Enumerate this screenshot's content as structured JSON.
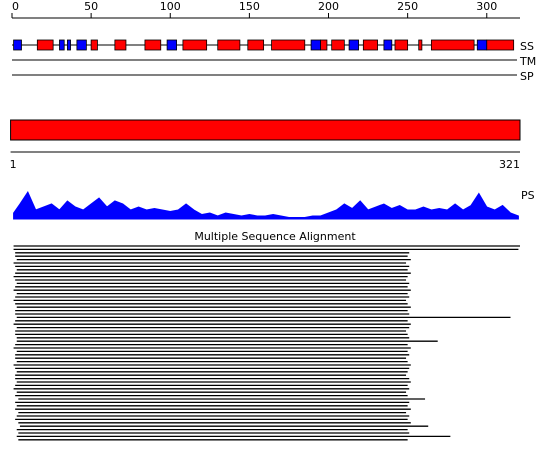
{
  "ruler": {
    "range": [
      0,
      321
    ],
    "ticks": [
      0,
      50,
      100,
      150,
      200,
      250,
      300
    ]
  },
  "tracks": {
    "ss": {
      "label": "SS",
      "helix_color": "#ff0000",
      "strand_color": "#0000ff",
      "segments": [
        {
          "type": "strand",
          "start": 1,
          "end": 6
        },
        {
          "type": "helix",
          "start": 16,
          "end": 26
        },
        {
          "type": "strand",
          "start": 30,
          "end": 33
        },
        {
          "type": "strand",
          "start": 35,
          "end": 37
        },
        {
          "type": "strand",
          "start": 41,
          "end": 47
        },
        {
          "type": "helix",
          "start": 50,
          "end": 54
        },
        {
          "type": "helix",
          "start": 65,
          "end": 72
        },
        {
          "type": "helix",
          "start": 84,
          "end": 94
        },
        {
          "type": "strand",
          "start": 98,
          "end": 104
        },
        {
          "type": "helix",
          "start": 108,
          "end": 123
        },
        {
          "type": "helix",
          "start": 130,
          "end": 144
        },
        {
          "type": "helix",
          "start": 149,
          "end": 159
        },
        {
          "type": "helix",
          "start": 164,
          "end": 185
        },
        {
          "type": "strand",
          "start": 189,
          "end": 195
        },
        {
          "type": "helix",
          "start": 195,
          "end": 199
        },
        {
          "type": "helix",
          "start": 202,
          "end": 210
        },
        {
          "type": "strand",
          "start": 213,
          "end": 219
        },
        {
          "type": "helix",
          "start": 222,
          "end": 231
        },
        {
          "type": "strand",
          "start": 235,
          "end": 240
        },
        {
          "type": "helix",
          "start": 242,
          "end": 250
        },
        {
          "type": "helix",
          "start": 257,
          "end": 259
        },
        {
          "type": "helix",
          "start": 265,
          "end": 292
        },
        {
          "type": "strand",
          "start": 294,
          "end": 300
        },
        {
          "type": "helix",
          "start": 300,
          "end": 317
        }
      ]
    },
    "tm": {
      "label": "TM"
    },
    "sp": {
      "label": "SP"
    }
  },
  "domain": {
    "start": 1,
    "end": 321,
    "color": "#ff0000"
  },
  "profile": {
    "label": "PS",
    "color": "#0000ff",
    "range": [
      0,
      1
    ],
    "residues": [
      1,
      5,
      10,
      15,
      20,
      25,
      30,
      35,
      40,
      45,
      50,
      55,
      60,
      65,
      70,
      75,
      80,
      85,
      90,
      95,
      100,
      105,
      110,
      115,
      120,
      125,
      130,
      135,
      140,
      145,
      150,
      155,
      160,
      165,
      170,
      175,
      180,
      185,
      190,
      195,
      200,
      205,
      210,
      215,
      220,
      225,
      230,
      235,
      240,
      245,
      250,
      255,
      260,
      265,
      270,
      275,
      280,
      285,
      290,
      295,
      300,
      305,
      310,
      315,
      320
    ],
    "values": [
      0.2,
      0.5,
      0.9,
      0.3,
      0.4,
      0.5,
      0.3,
      0.6,
      0.4,
      0.3,
      0.5,
      0.7,
      0.4,
      0.6,
      0.5,
      0.3,
      0.4,
      0.3,
      0.35,
      0.3,
      0.25,
      0.3,
      0.5,
      0.3,
      0.15,
      0.2,
      0.1,
      0.2,
      0.15,
      0.1,
      0.15,
      0.1,
      0.1,
      0.15,
      0.1,
      0.05,
      0.05,
      0.05,
      0.1,
      0.1,
      0.2,
      0.3,
      0.5,
      0.35,
      0.6,
      0.3,
      0.4,
      0.5,
      0.35,
      0.45,
      0.3,
      0.3,
      0.4,
      0.3,
      0.35,
      0.3,
      0.5,
      0.3,
      0.45,
      0.85,
      0.4,
      0.3,
      0.45,
      0.2,
      0.1
    ]
  },
  "alignment": {
    "title": "Multiple Sequence Alignment",
    "rows": [
      {
        "start": 1,
        "end": 321
      },
      {
        "start": 1,
        "end": 320
      },
      {
        "start": 2,
        "end": 251
      },
      {
        "start": 2,
        "end": 250
      },
      {
        "start": 3,
        "end": 252
      },
      {
        "start": 1,
        "end": 249
      },
      {
        "start": 2,
        "end": 251
      },
      {
        "start": 3,
        "end": 250
      },
      {
        "start": 2,
        "end": 252
      },
      {
        "start": 1,
        "end": 250
      },
      {
        "start": 2,
        "end": 249
      },
      {
        "start": 3,
        "end": 251
      },
      {
        "start": 2,
        "end": 250
      },
      {
        "start": 1,
        "end": 252
      },
      {
        "start": 3,
        "end": 250
      },
      {
        "start": 2,
        "end": 251
      },
      {
        "start": 1,
        "end": 249
      },
      {
        "start": 2,
        "end": 250
      },
      {
        "start": 3,
        "end": 252
      },
      {
        "start": 2,
        "end": 250
      },
      {
        "start": 2,
        "end": 251
      },
      {
        "start": 3,
        "end": 315
      },
      {
        "start": 2,
        "end": 250
      },
      {
        "start": 1,
        "end": 252
      },
      {
        "start": 3,
        "end": 251
      },
      {
        "start": 2,
        "end": 249
      },
      {
        "start": 2,
        "end": 250
      },
      {
        "start": 3,
        "end": 251
      },
      {
        "start": 3,
        "end": 269
      },
      {
        "start": 2,
        "end": 250
      },
      {
        "start": 1,
        "end": 252
      },
      {
        "start": 3,
        "end": 250
      },
      {
        "start": 2,
        "end": 251
      },
      {
        "start": 2,
        "end": 249
      },
      {
        "start": 3,
        "end": 250
      },
      {
        "start": 1,
        "end": 252
      },
      {
        "start": 2,
        "end": 251
      },
      {
        "start": 3,
        "end": 250
      },
      {
        "start": 2,
        "end": 249
      },
      {
        "start": 2,
        "end": 251
      },
      {
        "start": 3,
        "end": 252
      },
      {
        "start": 2,
        "end": 250
      },
      {
        "start": 1,
        "end": 251
      },
      {
        "start": 3,
        "end": 249
      },
      {
        "start": 2,
        "end": 250
      },
      {
        "start": 4,
        "end": 261
      },
      {
        "start": 2,
        "end": 251
      },
      {
        "start": 3,
        "end": 250
      },
      {
        "start": 2,
        "end": 252
      },
      {
        "start": 4,
        "end": 249
      },
      {
        "start": 3,
        "end": 251
      },
      {
        "start": 2,
        "end": 250
      },
      {
        "start": 4,
        "end": 252
      },
      {
        "start": 5,
        "end": 263
      },
      {
        "start": 3,
        "end": 250
      },
      {
        "start": 4,
        "end": 251
      },
      {
        "start": 3,
        "end": 277
      },
      {
        "start": 4,
        "end": 250
      }
    ]
  }
}
